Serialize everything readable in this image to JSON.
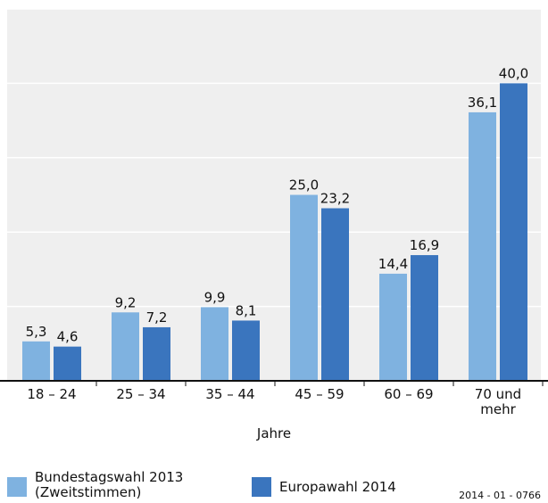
{
  "chart_data": {
    "type": "bar",
    "x_label": "Jahre",
    "categories": [
      "18 – 24",
      "25 – 34",
      "35 – 44",
      "45 – 59",
      "60 – 69",
      "70 und\nmehr"
    ],
    "series": [
      {
        "name": "Bundestagswahl 2013\n(Zweitstimmen)",
        "color": "#7fb2e0",
        "values": [
          5.3,
          9.2,
          9.9,
          25.0,
          14.4,
          36.1
        ],
        "value_labels": [
          "5,3",
          "9,2",
          "9,9",
          "25,0",
          "14,4",
          "36,1"
        ]
      },
      {
        "name": "Europawahl 2014",
        "color": "#3a75be",
        "values": [
          4.6,
          7.2,
          8.1,
          23.2,
          16.9,
          40.0
        ],
        "value_labels": [
          "4,6",
          "7,2",
          "8,1",
          "23,2",
          "16,9",
          "40,0"
        ]
      }
    ],
    "ylim": [
      0,
      50
    ],
    "yticks": [
      0,
      10,
      20,
      30,
      40,
      50
    ],
    "grid": true,
    "note": "2014 - 01 - 0766"
  }
}
